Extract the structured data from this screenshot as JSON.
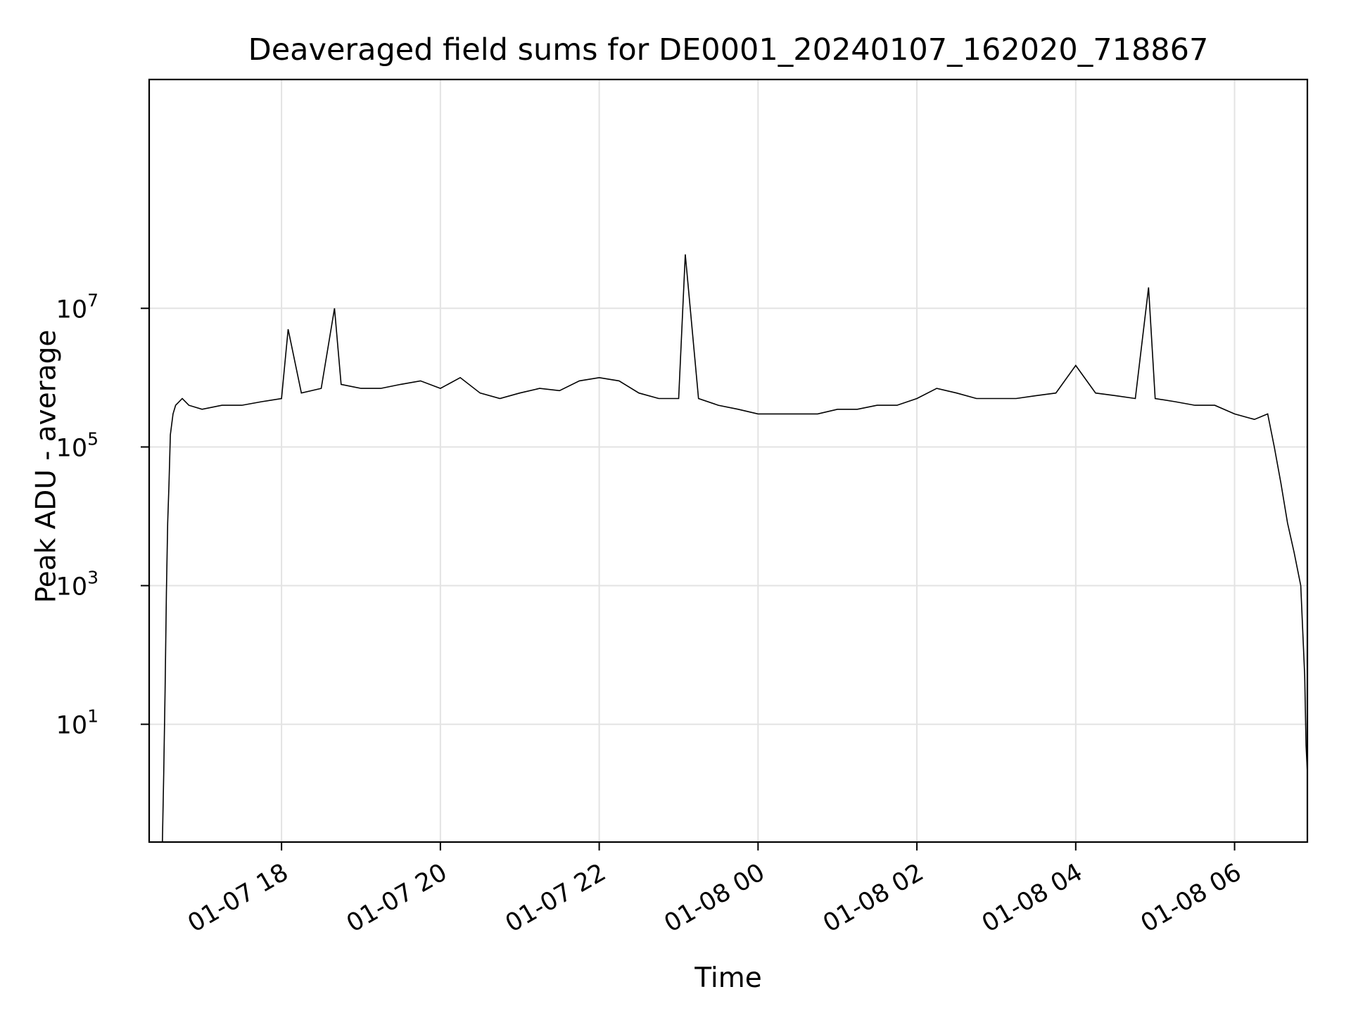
{
  "chart_data": {
    "type": "line",
    "title": "Deaveraged field sums for DE0001_20240107_162020_718867",
    "xlabel": "Time",
    "ylabel": "Peak ADU - average",
    "y_scale": "log",
    "ylim": [
      0.2,
      20000000000
    ],
    "xlim": [
      "2024-01-07 16:20",
      "2024-01-08 06:55"
    ],
    "x_ticks": [
      {
        "t": "2024-01-07 18:00",
        "label": "01-07 18"
      },
      {
        "t": "2024-01-07 20:00",
        "label": "01-07 20"
      },
      {
        "t": "2024-01-07 22:00",
        "label": "01-07 22"
      },
      {
        "t": "2024-01-08 00:00",
        "label": "01-08 00"
      },
      {
        "t": "2024-01-08 02:00",
        "label": "01-08 02"
      },
      {
        "t": "2024-01-08 04:00",
        "label": "01-08 04"
      },
      {
        "t": "2024-01-08 06:00",
        "label": "01-08 06"
      }
    ],
    "y_ticks": [
      {
        "value": 10,
        "base": "10",
        "exp": "1"
      },
      {
        "value": 1000,
        "base": "10",
        "exp": "3"
      },
      {
        "value": 100000,
        "base": "10",
        "exp": "5"
      },
      {
        "value": 10000000,
        "base": "10",
        "exp": "7"
      }
    ],
    "grid": true,
    "line_color": "#000000",
    "series": [
      {
        "x": [
          "2024-01-07 16:30",
          "2024-01-07 16:31",
          "2024-01-07 16:32",
          "2024-01-07 16:33",
          "2024-01-07 16:34",
          "2024-01-07 16:35",
          "2024-01-07 16:36",
          "2024-01-07 16:38",
          "2024-01-07 16:40",
          "2024-01-07 16:45",
          "2024-01-07 16:50",
          "2024-01-07 17:00",
          "2024-01-07 17:15",
          "2024-01-07 17:30",
          "2024-01-07 17:45",
          "2024-01-07 18:00",
          "2024-01-07 18:05",
          "2024-01-07 18:15",
          "2024-01-07 18:30",
          "2024-01-07 18:40",
          "2024-01-07 18:45",
          "2024-01-07 19:00",
          "2024-01-07 19:15",
          "2024-01-07 19:30",
          "2024-01-07 19:45",
          "2024-01-07 20:00",
          "2024-01-07 20:15",
          "2024-01-07 20:30",
          "2024-01-07 20:45",
          "2024-01-07 21:00",
          "2024-01-07 21:15",
          "2024-01-07 21:30",
          "2024-01-07 21:45",
          "2024-01-07 22:00",
          "2024-01-07 22:15",
          "2024-01-07 22:30",
          "2024-01-07 22:45",
          "2024-01-07 23:00",
          "2024-01-07 23:05",
          "2024-01-07 23:15",
          "2024-01-07 23:30",
          "2024-01-07 23:45",
          "2024-01-08 00:00",
          "2024-01-08 00:15",
          "2024-01-08 00:30",
          "2024-01-08 00:45",
          "2024-01-08 01:00",
          "2024-01-08 01:15",
          "2024-01-08 01:30",
          "2024-01-08 01:45",
          "2024-01-08 02:00",
          "2024-01-08 02:15",
          "2024-01-08 02:30",
          "2024-01-08 02:45",
          "2024-01-08 03:00",
          "2024-01-08 03:15",
          "2024-01-08 03:30",
          "2024-01-08 03:45",
          "2024-01-08 04:00",
          "2024-01-08 04:15",
          "2024-01-08 04:30",
          "2024-01-08 04:45",
          "2024-01-08 04:55",
          "2024-01-08 05:00",
          "2024-01-08 05:15",
          "2024-01-08 05:30",
          "2024-01-08 05:45",
          "2024-01-08 06:00",
          "2024-01-08 06:15",
          "2024-01-08 06:25",
          "2024-01-08 06:30",
          "2024-01-08 06:35",
          "2024-01-08 06:40",
          "2024-01-08 06:45",
          "2024-01-08 06:50",
          "2024-01-08 06:53",
          "2024-01-08 06:54",
          "2024-01-08 06:55"
        ],
        "y": [
          0.2,
          2,
          30,
          800,
          8000,
          30000,
          150000,
          300000,
          400000,
          500000,
          400000,
          350000,
          400000,
          400000,
          450000,
          500000,
          5000000,
          600000,
          700000,
          10000000,
          800000,
          700000,
          700000,
          800000,
          900000,
          700000,
          1000000,
          600000,
          500000,
          600000,
          700000,
          650000,
          900000,
          1000000,
          900000,
          600000,
          500000,
          500000,
          60000000,
          500000,
          400000,
          350000,
          300000,
          300000,
          300000,
          300000,
          350000,
          350000,
          400000,
          400000,
          500000,
          700000,
          600000,
          500000,
          500000,
          500000,
          550000,
          600000,
          1500000,
          600000,
          550000,
          500000,
          20000000,
          500000,
          450000,
          400000,
          400000,
          300000,
          250000,
          300000,
          100000,
          30000,
          8000,
          3000,
          1000,
          50,
          5,
          2
        ]
      }
    ]
  }
}
